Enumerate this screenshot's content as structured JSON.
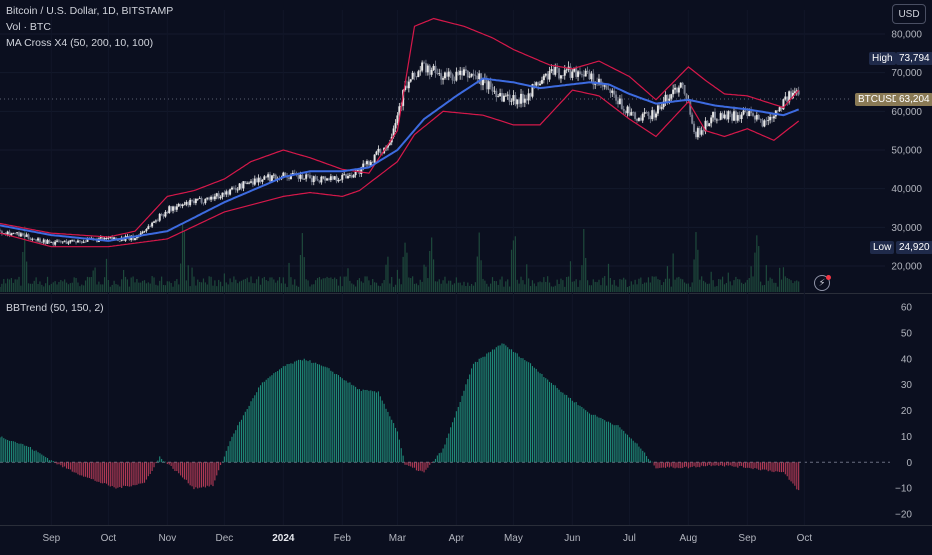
{
  "header": {
    "symbol_line": "Bitcoin / U.S. Dollar, 1D, BITSTAMP",
    "volume_line": "Vol · BTC",
    "ma_line": "MA Cross X4 (50, 200, 10, 100)",
    "indicator_line": "BBTrend (50, 150, 2)"
  },
  "toolbar": {
    "currency_button": "USD"
  },
  "badges": {
    "high_label": "High",
    "high_value": "73,794",
    "price_label": "BTCUSD",
    "price_value": "63,204",
    "low_label": "Low",
    "low_value": "24,920"
  },
  "colors": {
    "background": "#0b0f1f",
    "up_candle": "#e6e6e6",
    "down_candle": "#7a7f8f",
    "band": "#d6184a",
    "ma": "#3d6be0",
    "osc_pos": "#1f8a78",
    "osc_neg": "#b23a56",
    "volume": "#1e4a3c"
  },
  "chart_data": [
    {
      "type": "line",
      "title": "Bitcoin / U.S. Dollar, 1D, BITSTAMP",
      "y_axis": {
        "ticks": [
          20000,
          30000,
          40000,
          50000,
          60000,
          70000,
          80000
        ],
        "tick_labels": [
          "20,000",
          "30,000",
          "40,000",
          "50,000",
          "60,000",
          "70,000",
          "80,000"
        ]
      },
      "x_axis": {
        "tick_labels": [
          "Sep",
          "Oct",
          "Nov",
          "Dec",
          "2024",
          "Feb",
          "Mar",
          "Apr",
          "May",
          "Jun",
          "Jul",
          "Aug",
          "Sep",
          "Oct"
        ],
        "range": [
          "2023-08-05",
          "2024-10-25"
        ]
      },
      "last_price": 63204,
      "visible_high": 73794,
      "visible_low": 24920,
      "series": [
        {
          "dates": [
            "2023-08-05",
            "2023-09-01",
            "2023-10-01",
            "2023-10-15",
            "2023-11-01",
            "2023-11-15",
            "2023-12-01",
            "2023-12-15",
            "2024-01-01",
            "2024-01-15",
            "2024-02-01",
            "2024-02-10",
            "2024-02-25",
            "2024-03-05",
            "2024-03-14",
            "2024-03-25",
            "2024-04-10",
            "2024-04-25",
            "2024-05-05",
            "2024-05-20",
            "2024-06-05",
            "2024-06-20",
            "2024-07-05",
            "2024-07-15",
            "2024-07-29",
            "2024-08-05",
            "2024-08-15",
            "2024-09-01",
            "2024-09-10",
            "2024-09-20",
            "2024-09-28"
          ],
          "values": [
            29200,
            26000,
            27000,
            27200,
            34500,
            36500,
            38700,
            42000,
            43500,
            42500,
            43000,
            44500,
            51500,
            66000,
            71500,
            69000,
            69500,
            64000,
            63000,
            69800,
            70500,
            65000,
            57500,
            60000,
            68000,
            54000,
            59000,
            59000,
            57000,
            62500,
            65500
          ]
        },
        {
          "name": "MA",
          "dates": [
            "2023-08-05",
            "2023-09-01",
            "2023-10-01",
            "2023-11-01",
            "2023-12-01",
            "2024-01-01",
            "2024-01-15",
            "2024-02-01",
            "2024-02-15",
            "2024-03-01",
            "2024-03-15",
            "2024-04-01",
            "2024-04-15",
            "2024-05-01",
            "2024-05-15",
            "2024-06-01",
            "2024-06-10",
            "2024-06-20",
            "2024-07-01",
            "2024-07-15",
            "2024-08-01",
            "2024-08-15",
            "2024-09-01",
            "2024-09-20",
            "2024-09-28"
          ],
          "values": [
            30500,
            28000,
            26500,
            29000,
            36500,
            43000,
            44500,
            44500,
            45500,
            50000,
            58000,
            64000,
            68500,
            67500,
            66000,
            67000,
            67500,
            67000,
            64500,
            62000,
            63000,
            61500,
            60500,
            59000,
            60500
          ]
        },
        {
          "name": "Upper band",
          "dates": [
            "2023-08-05",
            "2023-09-01",
            "2023-10-01",
            "2023-10-15",
            "2023-11-01",
            "2023-11-15",
            "2023-12-01",
            "2023-12-15",
            "2024-01-01",
            "2024-01-15",
            "2024-02-01",
            "2024-02-15",
            "2024-03-01",
            "2024-03-10",
            "2024-03-20",
            "2024-04-05",
            "2024-04-20",
            "2024-05-01",
            "2024-05-20",
            "2024-06-01",
            "2024-06-15",
            "2024-07-01",
            "2024-07-15",
            "2024-08-01",
            "2024-08-10",
            "2024-08-20",
            "2024-09-01",
            "2024-09-20",
            "2024-09-28"
          ],
          "values": [
            31000,
            28500,
            27500,
            29000,
            38000,
            39500,
            42500,
            47000,
            50000,
            48000,
            45000,
            44000,
            55000,
            82000,
            84000,
            82000,
            79000,
            76000,
            72000,
            71000,
            73000,
            69000,
            63000,
            71500,
            68000,
            64500,
            64000,
            61000,
            65500
          ]
        },
        {
          "name": "Lower band",
          "dates": [
            "2023-08-05",
            "2023-09-01",
            "2023-10-01",
            "2023-11-01",
            "2023-12-01",
            "2024-01-01",
            "2024-01-15",
            "2024-02-01",
            "2024-02-10",
            "2024-03-01",
            "2024-03-10",
            "2024-03-25",
            "2024-04-15",
            "2024-05-01",
            "2024-05-15",
            "2024-06-01",
            "2024-06-15",
            "2024-07-01",
            "2024-07-15",
            "2024-08-01",
            "2024-08-10",
            "2024-08-20",
            "2024-09-01",
            "2024-09-15",
            "2024-09-28"
          ],
          "values": [
            28500,
            25000,
            25000,
            27000,
            34000,
            38000,
            39000,
            38000,
            39500,
            47000,
            54000,
            60000,
            59000,
            56500,
            56500,
            65500,
            64000,
            58000,
            53500,
            62500,
            55000,
            53500,
            55500,
            52500,
            57500
          ]
        }
      ]
    },
    {
      "type": "bar",
      "title": "Vol · BTC",
      "shape": "vertical bars at the base of the price pane, one per day",
      "peak_dates": [
        "2023-08-18",
        "2023-11-09",
        "2024-01-11",
        "2024-03-05",
        "2024-03-19",
        "2024-04-13",
        "2024-05-01",
        "2024-06-07",
        "2024-08-05",
        "2024-09-06"
      ]
    },
    {
      "type": "area",
      "title": "BBTrend (50, 150, 2)",
      "y_axis": {
        "ticks": [
          -20,
          -10,
          0,
          10,
          20,
          30,
          40,
          50,
          60
        ],
        "tick_labels": [
          "−20",
          "−10",
          "0",
          "10",
          "20",
          "30",
          "40",
          "50",
          "60"
        ]
      },
      "zero_line": 0,
      "series": [
        {
          "dates": [
            "2023-08-05",
            "2023-08-20",
            "2023-09-05",
            "2023-09-20",
            "2023-10-05",
            "2023-10-20",
            "2023-10-28",
            "2023-11-05",
            "2023-11-15",
            "2023-11-25",
            "2023-12-05",
            "2023-12-20",
            "2024-01-01",
            "2024-01-12",
            "2024-01-25",
            "2024-02-10",
            "2024-02-20",
            "2024-03-01",
            "2024-03-05",
            "2024-03-15",
            "2024-03-25",
            "2024-04-10",
            "2024-04-25",
            "2024-05-10",
            "2024-05-25",
            "2024-06-10",
            "2024-06-25",
            "2024-07-05",
            "2024-07-15",
            "2024-08-01",
            "2024-08-15",
            "2024-09-01",
            "2024-09-20",
            "2024-09-28"
          ],
          "values": [
            10,
            6,
            -1,
            -6,
            -10,
            -8,
            2,
            -3,
            -10,
            -9,
            10,
            30,
            37,
            40,
            36,
            28,
            27,
            12,
            -1,
            -4,
            5,
            38,
            46,
            38,
            28,
            19,
            14,
            7,
            -2,
            -2,
            -1,
            -2,
            -4,
            -11
          ]
        }
      ]
    }
  ]
}
